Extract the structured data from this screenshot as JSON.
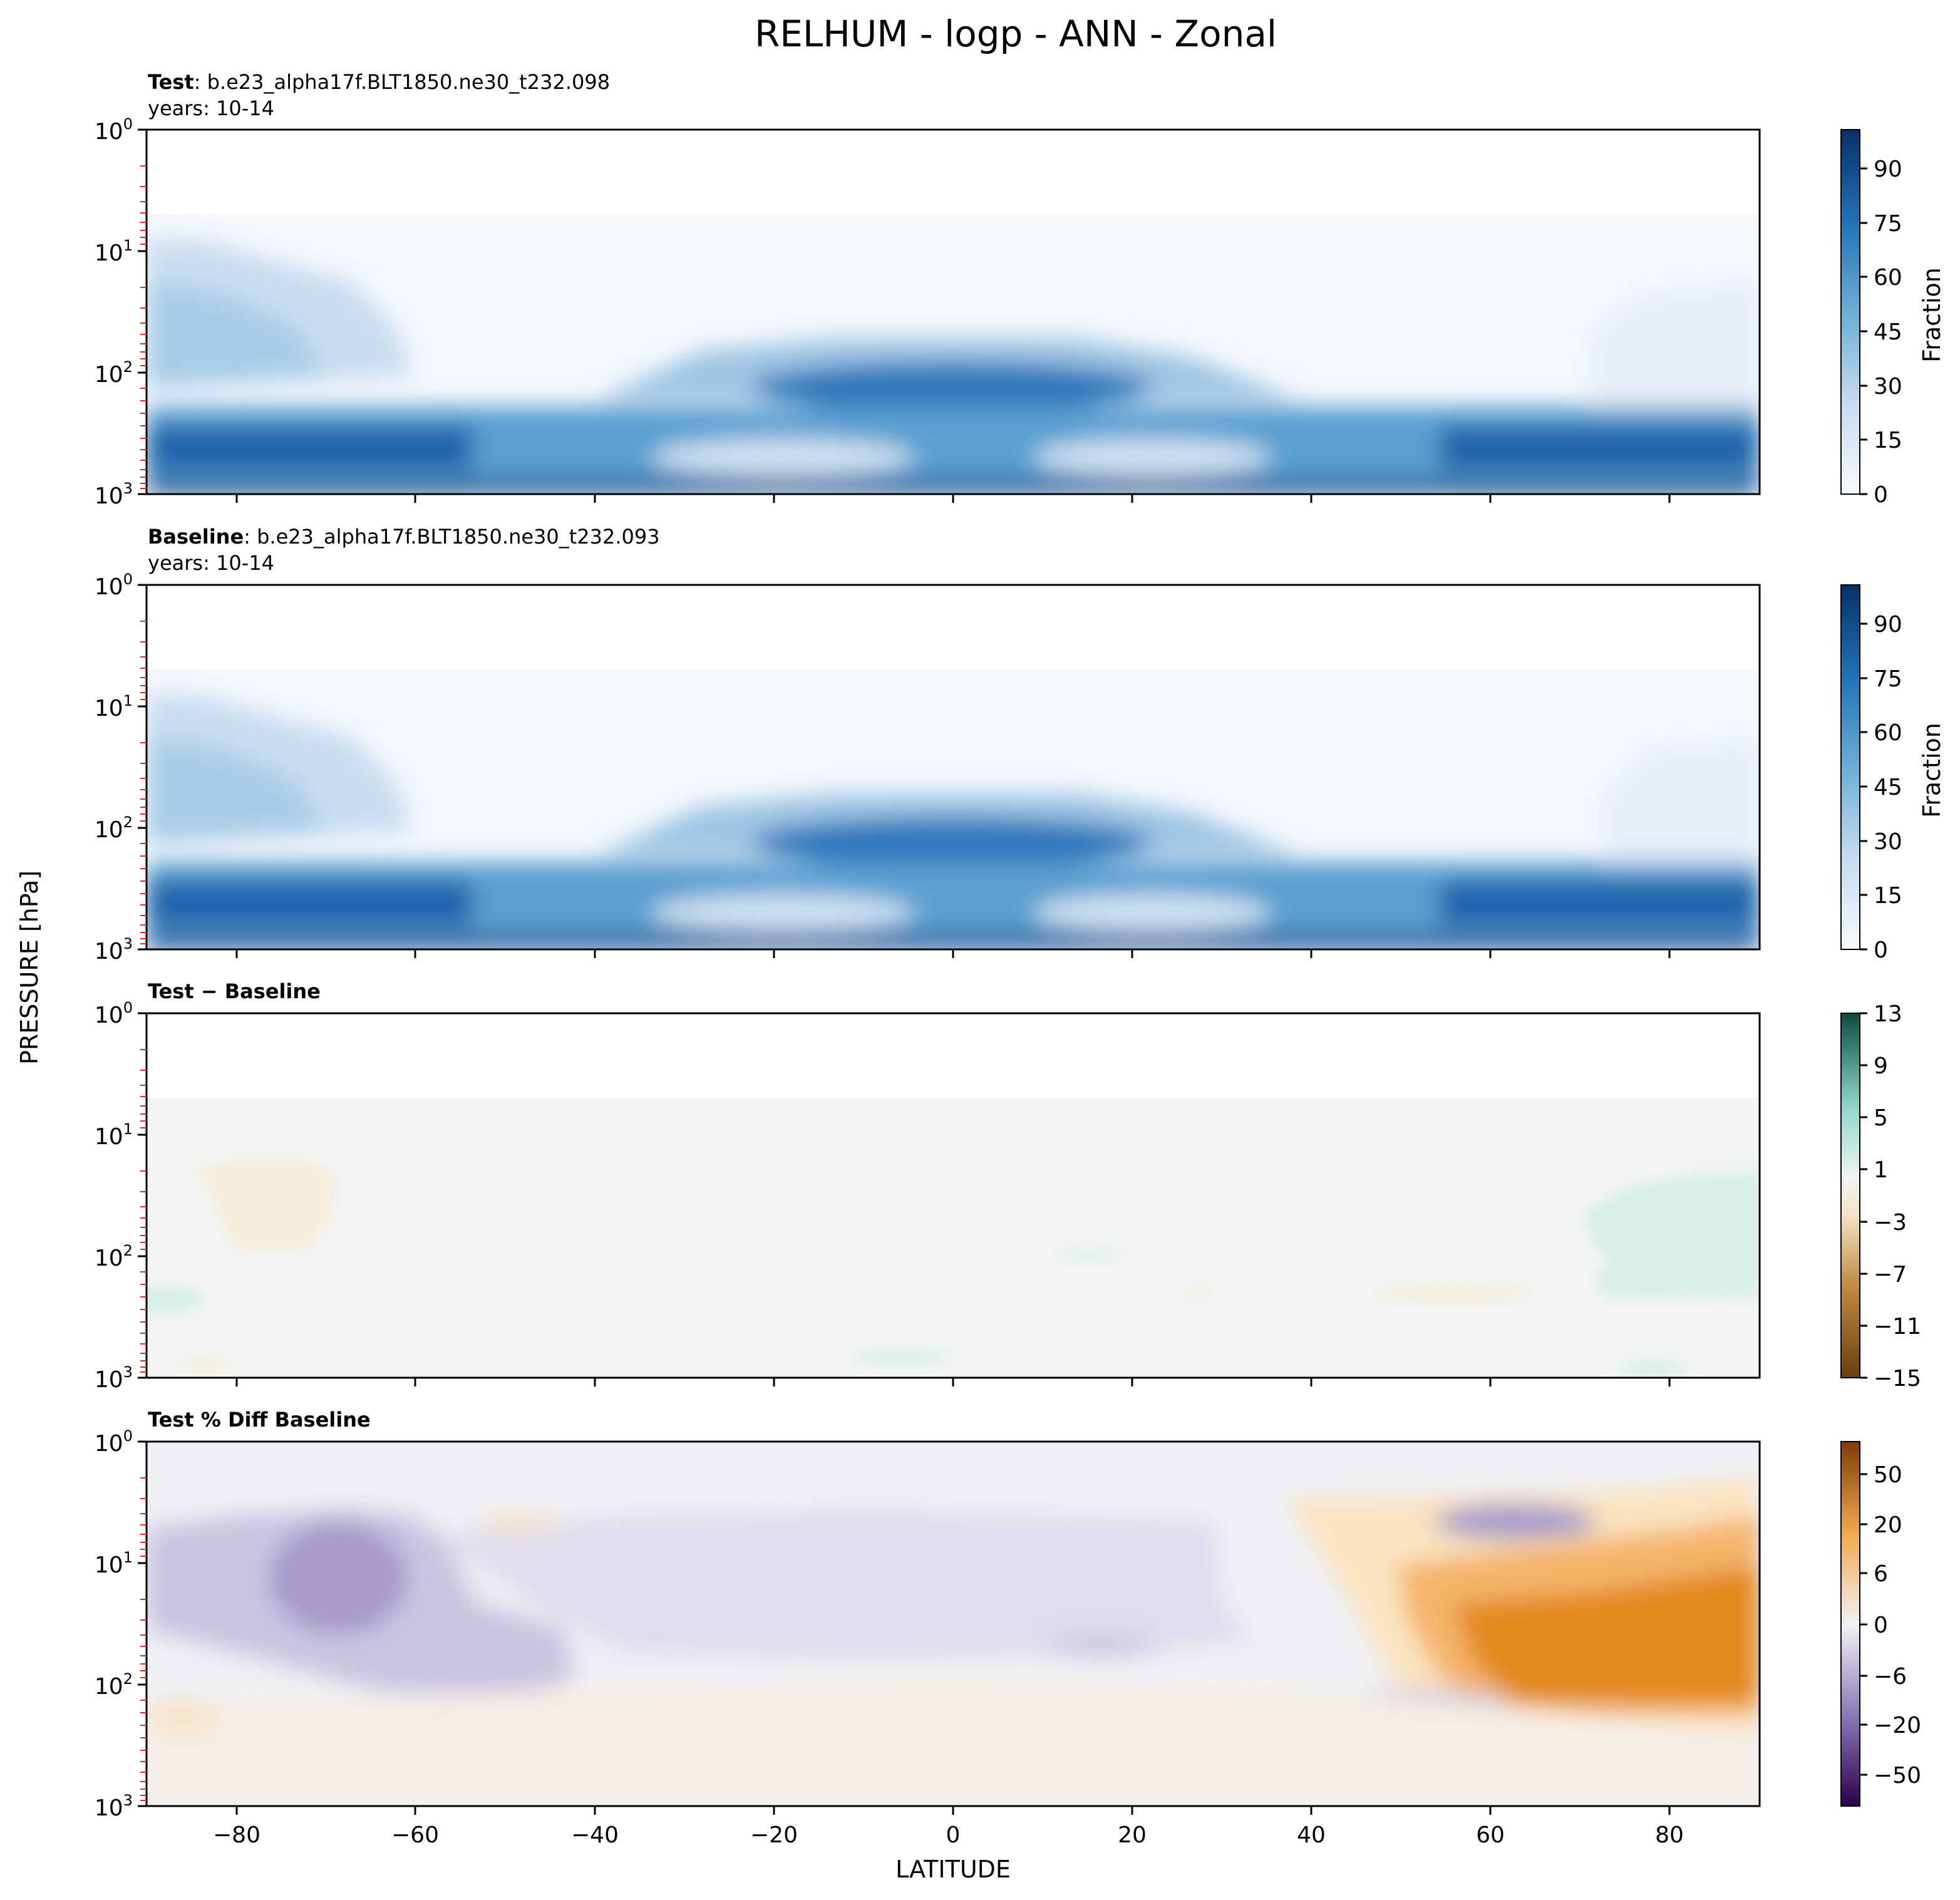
{
  "figure": {
    "title": "RELHUM - logp - ANN - Zonal",
    "ylabel": "PRESSURE [hPa]",
    "xlabel": "LATITUDE"
  },
  "chart_data": [
    {
      "type": "heatmap",
      "panel": "test",
      "title_bold": "Test",
      "title_rest": ": b.e23_alpha17f.BLT1850.ne30_t232.098",
      "subtitle": "years: 10-14",
      "xlim": [
        -90,
        90
      ],
      "ylim": [
        1000,
        1
      ],
      "yscale": "log",
      "x_ticks": [
        -80,
        -60,
        -40,
        -20,
        0,
        20,
        40,
        60,
        80
      ],
      "y_ticks": [
        "10⁰",
        "10¹",
        "10²",
        "10³"
      ],
      "colorbar": {
        "label": "Fraction",
        "ticks": [
          "0",
          "15",
          "30",
          "45",
          "60",
          "75",
          "90"
        ],
        "range": [
          0,
          100
        ],
        "colormap": "Blues"
      }
    },
    {
      "type": "heatmap",
      "panel": "baseline",
      "title_bold": "Baseline",
      "title_rest": ": b.e23_alpha17f.BLT1850.ne30_t232.093",
      "subtitle": "years: 10-14",
      "xlim": [
        -90,
        90
      ],
      "ylim": [
        1000,
        1
      ],
      "yscale": "log",
      "colorbar": {
        "label": "Fraction",
        "ticks": [
          "0",
          "15",
          "30",
          "45",
          "60",
          "75",
          "90"
        ],
        "range": [
          0,
          100
        ],
        "colormap": "Blues"
      }
    },
    {
      "type": "heatmap",
      "panel": "difference",
      "title_bold": "Test − Baseline",
      "xlim": [
        -90,
        90
      ],
      "ylim": [
        1000,
        1
      ],
      "yscale": "log",
      "colorbar": {
        "label": "",
        "ticks": [
          "13",
          "9",
          "5",
          "1",
          "−3",
          "−7",
          "−11",
          "−15"
        ],
        "range": [
          -15,
          13
        ],
        "colormap": "BrBG"
      }
    },
    {
      "type": "heatmap",
      "panel": "percent_difference",
      "title_bold": "Test % Diff Baseline",
      "xlim": [
        -90,
        90
      ],
      "ylim": [
        1000,
        1
      ],
      "yscale": "log",
      "colorbar": {
        "label": "",
        "ticks": [
          "50",
          "20",
          "6",
          "0",
          "−6",
          "−20",
          "−50"
        ],
        "colormap": "PuOr"
      }
    }
  ]
}
